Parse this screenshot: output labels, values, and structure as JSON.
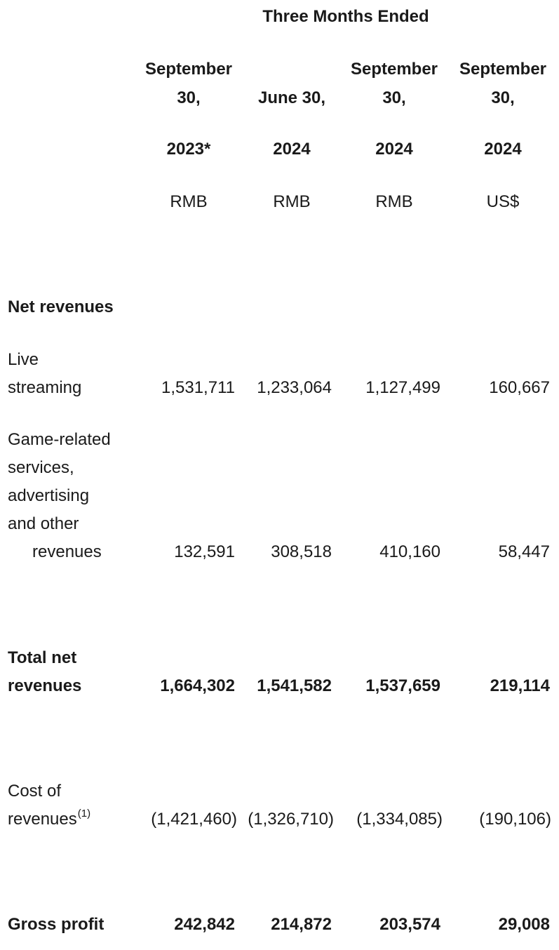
{
  "header": {
    "period_title": "Three Months Ended",
    "columns": [
      {
        "line1": "September",
        "line2": "30,",
        "year": "2023*",
        "currency": "RMB"
      },
      {
        "line1": "",
        "line2": "June 30,",
        "year": "2024",
        "currency": "RMB"
      },
      {
        "line1": "September",
        "line2": "30,",
        "year": "2024",
        "currency": "RMB"
      },
      {
        "line1": "September",
        "line2": "30,",
        "year": "2024",
        "currency": "US$"
      }
    ]
  },
  "section_net_revenues": "Net revenues",
  "rows": {
    "live_streaming": {
      "label_line1": "Live",
      "label_line2": "streaming",
      "values": [
        "1,531,711",
        "1,233,064",
        "1,127,499",
        "160,667"
      ]
    },
    "game_related": {
      "label_line1": "Game-related",
      "label_line2": "services,",
      "label_line3": "advertising",
      "label_line4": "and other",
      "label_line5": "revenues",
      "values": [
        "132,591",
        "308,518",
        "410,160",
        "58,447"
      ]
    },
    "total_net_revenues": {
      "label_line1": "Total net",
      "label_line2": "revenues",
      "values": [
        "1,664,302",
        "1,541,582",
        "1,537,659",
        "219,114"
      ]
    },
    "cost_of_revenues": {
      "label_line1": "Cost of",
      "label_line2": "revenues",
      "footnote": "(1)",
      "values": [
        "(1,421,460)",
        "(1,326,710)",
        "(1,334,085)",
        "(190,106)"
      ]
    },
    "gross_profit": {
      "label": "Gross profit",
      "values": [
        "242,842",
        "214,872",
        "203,574",
        "29,008"
      ]
    }
  }
}
